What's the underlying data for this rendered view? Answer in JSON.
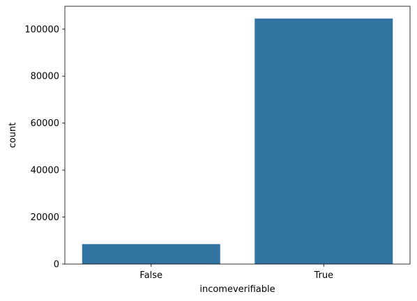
{
  "chart_data": {
    "type": "bar",
    "categories": [
      "False",
      "True"
    ],
    "values": [
      8500,
      104500
    ],
    "xlabel": "incomeverifiable",
    "ylabel": "count",
    "ylim": [
      0,
      109725
    ],
    "yticks": [
      0,
      20000,
      40000,
      60000,
      80000,
      100000
    ],
    "ytick_labels": [
      "0",
      "20000",
      "40000",
      "60000",
      "80000",
      "100000"
    ],
    "bar_color": "#3274a1",
    "grid": false
  }
}
